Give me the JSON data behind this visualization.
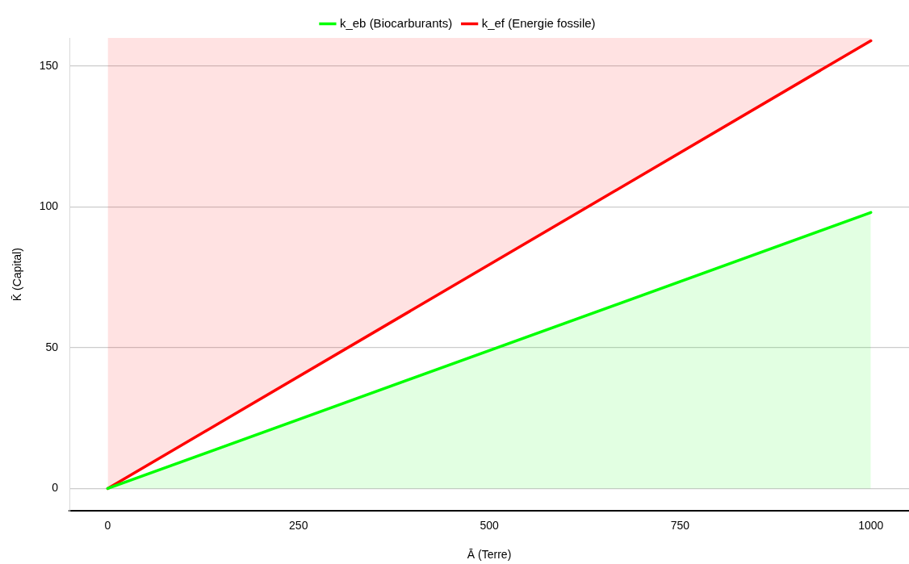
{
  "chart_data": {
    "type": "line",
    "xlabel": "Ā (Terre)",
    "ylabel": "K̄ (Capital)",
    "x": [
      0,
      1000
    ],
    "series": [
      {
        "name": "k_eb (Biocarburants)",
        "color": "#00ff00",
        "values": [
          0,
          98
        ],
        "lower": [
          0,
          0
        ],
        "upper": [
          0,
          98
        ]
      },
      {
        "name": "k_ef (Energie fossile)",
        "color": "#ff0000",
        "values": [
          0,
          159
        ],
        "lower": [
          0,
          159
        ],
        "upper": [
          160,
          160
        ]
      }
    ],
    "xlim": [
      -50,
      1050
    ],
    "xticks": [
      0,
      250,
      500,
      750,
      1000
    ],
    "ylim": [
      -8,
      160
    ],
    "yticks": [
      0,
      50,
      100,
      150
    ],
    "grid": "y",
    "legend": "top",
    "line_style": "solid",
    "marker": "none"
  }
}
